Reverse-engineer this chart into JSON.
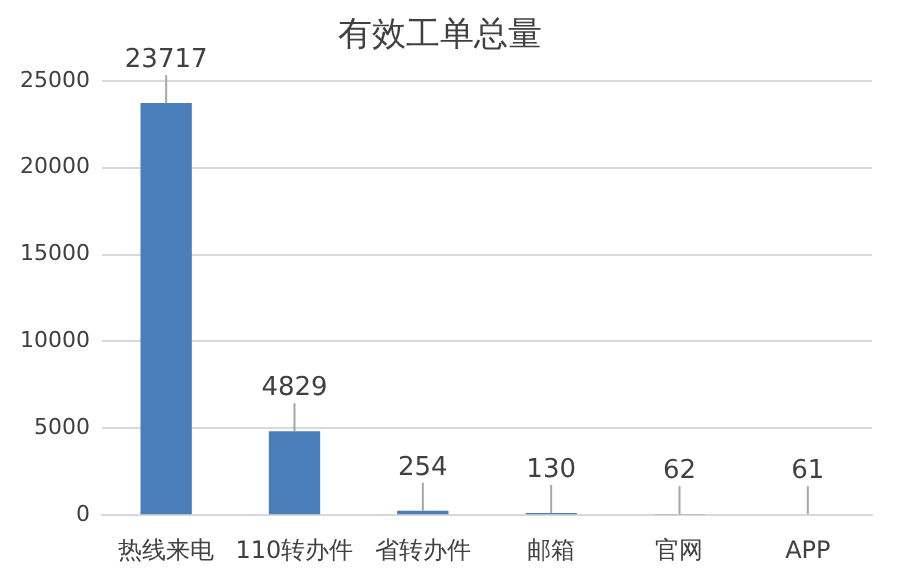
{
  "chart_data": {
    "type": "bar",
    "title": "有效工单总量",
    "categories": [
      "热线来电",
      "110转办件",
      "省转办件",
      "邮箱",
      "官网",
      "APP"
    ],
    "values": [
      23717,
      4829,
      254,
      130,
      62,
      61
    ],
    "color": "#4a7ebb",
    "ylim": [
      0,
      25000
    ],
    "yticks": [
      0,
      5000,
      10000,
      15000,
      20000,
      25000
    ],
    "grid": "y",
    "legend": false,
    "data_labels": true
  }
}
